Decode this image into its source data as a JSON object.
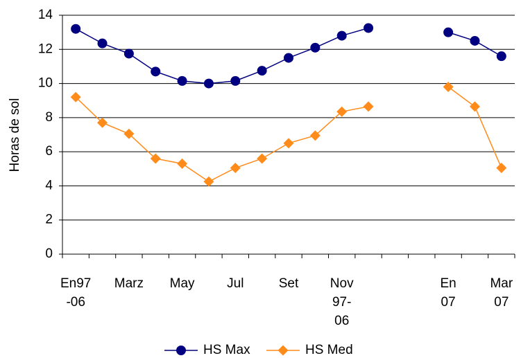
{
  "chart_data": {
    "type": "line",
    "y_label": "Horas de sol",
    "categories": [
      "En97 -06",
      null,
      "Marz",
      null,
      "May",
      null,
      "Jul",
      null,
      "Set",
      null,
      "Nov 97- 06",
      null,
      null,
      null,
      "En 07",
      null,
      "Mar 07"
    ],
    "series": [
      {
        "name": "HS Max",
        "color": "#000080",
        "marker": "circle",
        "values": [
          13.2,
          12.35,
          11.75,
          10.7,
          10.15,
          10.0,
          10.15,
          10.75,
          11.5,
          12.1,
          12.8,
          13.25,
          null,
          null,
          13.0,
          12.5,
          11.6
        ]
      },
      {
        "name": "HS Med",
        "color": "#ff8c1a",
        "marker": "diamond",
        "values": [
          9.2,
          7.7,
          7.05,
          5.6,
          5.3,
          4.25,
          5.05,
          5.6,
          6.5,
          6.95,
          8.35,
          8.65,
          null,
          null,
          9.8,
          8.65,
          5.05
        ]
      }
    ],
    "ylim": [
      0,
      14
    ],
    "yticks": [
      0,
      2,
      4,
      6,
      8,
      10,
      12,
      14
    ],
    "grid": true,
    "legend": "bottom"
  }
}
